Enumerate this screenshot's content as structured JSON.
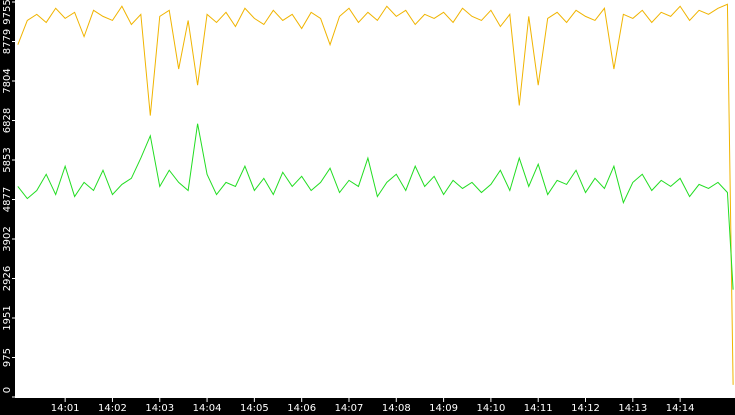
{
  "chart_data": {
    "type": "line",
    "x": [
      0,
      0.2,
      0.4,
      0.6,
      0.8,
      1.0,
      1.2,
      1.4,
      1.6,
      1.8,
      2.0,
      2.2,
      2.4,
      2.6,
      2.8,
      3.0,
      3.2,
      3.4,
      3.6,
      3.8,
      4.0,
      4.2,
      4.4,
      4.6,
      4.8,
      5.0,
      5.2,
      5.4,
      5.6,
      5.8,
      6.0,
      6.2,
      6.4,
      6.6,
      6.8,
      7.0,
      7.2,
      7.4,
      7.6,
      7.8,
      8.0,
      8.2,
      8.4,
      8.6,
      8.8,
      9.0,
      9.2,
      9.4,
      9.6,
      9.8,
      10.0,
      10.2,
      10.4,
      10.6,
      10.8,
      11.0,
      11.2,
      11.4,
      11.6,
      11.8,
      12.0,
      12.2,
      12.4,
      12.6,
      12.8,
      13.0,
      13.2,
      13.4,
      13.6,
      13.8,
      14.0,
      14.2,
      14.4,
      14.6,
      14.8,
      15.0,
      15.12
    ],
    "series": [
      {
        "color": "#f0b400",
        "values": [
          8700,
          9300,
          9450,
          9250,
          9600,
          9350,
          9500,
          8900,
          9550,
          9400,
          9300,
          9650,
          9200,
          9450,
          6950,
          9400,
          9550,
          8100,
          9300,
          7700,
          9450,
          9250,
          9500,
          9150,
          9600,
          9350,
          9200,
          9550,
          9300,
          9450,
          9100,
          9500,
          9350,
          8700,
          9400,
          9600,
          9250,
          9500,
          9300,
          9650,
          9400,
          9550,
          9200,
          9450,
          9350,
          9500,
          9250,
          9600,
          9400,
          9300,
          9550,
          9150,
          9450,
          7200,
          9400,
          7700,
          9350,
          9500,
          9250,
          9550,
          9400,
          9300,
          9600,
          8100,
          9450,
          9350,
          9550,
          9250,
          9500,
          9400,
          9650,
          9300,
          9550,
          9450,
          9600,
          9700,
          300
        ]
      },
      {
        "color": "#22dd22",
        "values": [
          5200,
          4900,
          5100,
          5500,
          5000,
          5700,
          4950,
          5300,
          5100,
          5600,
          5000,
          5250,
          5400,
          5900,
          6450,
          5200,
          5600,
          5300,
          5100,
          6750,
          5500,
          5000,
          5300,
          5200,
          5700,
          5100,
          5400,
          5000,
          5550,
          5200,
          5450,
          5100,
          5300,
          5650,
          5050,
          5350,
          5200,
          5900,
          4950,
          5300,
          5500,
          5100,
          5700,
          5200,
          5450,
          5000,
          5350,
          5150,
          5300,
          5050,
          5250,
          5600,
          5100,
          5900,
          5200,
          5750,
          5000,
          5350,
          5250,
          5600,
          5050,
          5400,
          5150,
          5700,
          4800,
          5300,
          5500,
          5100,
          5350,
          5200,
          5400,
          4950,
          5250,
          5150,
          5300,
          5050,
          2650
        ]
      }
    ],
    "xlim": [
      -0.06,
      15.16
    ],
    "xticks": [
      {
        "value": 1,
        "label": "14:01"
      },
      {
        "value": 2,
        "label": "14:02"
      },
      {
        "value": 3,
        "label": "14:03"
      },
      {
        "value": 4,
        "label": "14:04"
      },
      {
        "value": 5,
        "label": "14:05"
      },
      {
        "value": 6,
        "label": "14:06"
      },
      {
        "value": 7,
        "label": "14:07"
      },
      {
        "value": 8,
        "label": "14:08"
      },
      {
        "value": 9,
        "label": "14:09"
      },
      {
        "value": 10,
        "label": "14:10"
      },
      {
        "value": 11,
        "label": "14:11"
      },
      {
        "value": 12,
        "label": "14:12"
      },
      {
        "value": 13,
        "label": "14:13"
      },
      {
        "value": 14,
        "label": "14:14"
      }
    ],
    "ylim": [
      0,
      9755
    ],
    "yticks": [
      0,
      975,
      1951,
      2926,
      3902,
      4877,
      5853,
      6828,
      7804,
      8779,
      9755
    ]
  }
}
